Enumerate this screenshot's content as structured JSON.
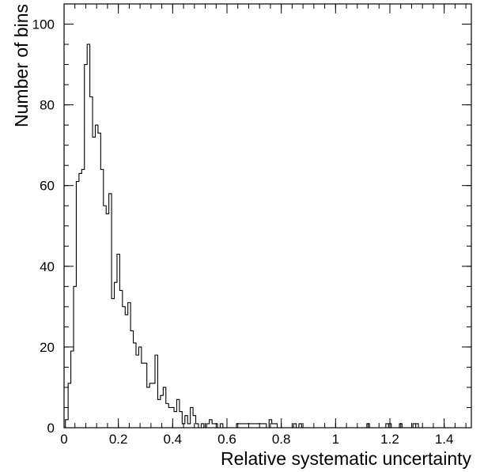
{
  "chart_data": {
    "type": "bar",
    "histogram": true,
    "title": "",
    "xlabel": "Relative systematic uncertainty",
    "ylabel": "Number of bins",
    "xlim": [
      0,
      1.5
    ],
    "ylim": [
      0,
      105
    ],
    "xticks": [
      "0",
      "0.2",
      "0.4",
      "0.6",
      "0.8",
      "1",
      "1.2",
      "1.4"
    ],
    "yticks": [
      "0",
      "20",
      "40",
      "60",
      "80",
      "100"
    ],
    "grid": false,
    "line_color": "#000000",
    "bin_width": 0.01,
    "series": [
      {
        "x": [
          0.01,
          0.02,
          0.03,
          0.04,
          0.05,
          0.06,
          0.07,
          0.08,
          0.09,
          0.1,
          0.11,
          0.12,
          0.13,
          0.14,
          0.15,
          0.16,
          0.17,
          0.18,
          0.19,
          0.2,
          0.21,
          0.22,
          0.23,
          0.24,
          0.25,
          0.26,
          0.27,
          0.28,
          0.29,
          0.3,
          0.31,
          0.32,
          0.33,
          0.34,
          0.35,
          0.36,
          0.37,
          0.38,
          0.39,
          0.4,
          0.41,
          0.42,
          0.43,
          0.44,
          0.45,
          0.46,
          0.47,
          0.48,
          0.49,
          0.5,
          0.51,
          0.52,
          0.53,
          0.54,
          0.55,
          0.56,
          0.57,
          0.58,
          0.59,
          0.6,
          0.61,
          0.62,
          0.63,
          0.64,
          0.65,
          0.66,
          0.67,
          0.68,
          0.69,
          0.7,
          0.71,
          0.72,
          0.73,
          0.74,
          0.75,
          0.76,
          0.77,
          0.78,
          0.79,
          0.8,
          0.81,
          0.82,
          0.83,
          0.84,
          0.85,
          0.86,
          0.87,
          0.88,
          0.89,
          0.9,
          0.91,
          0.92,
          0.93,
          0.94,
          0.95,
          0.96,
          0.97,
          0.98,
          0.99,
          1.0,
          1.01,
          1.02,
          1.03,
          1.04,
          1.05,
          1.06,
          1.07,
          1.08,
          1.09,
          1.1,
          1.11,
          1.12,
          1.13,
          1.14,
          1.15,
          1.16,
          1.17,
          1.18,
          1.19,
          1.2,
          1.21,
          1.22,
          1.23,
          1.24,
          1.25,
          1.26,
          1.27,
          1.28,
          1.29,
          1.3,
          1.31,
          1.32,
          1.33,
          1.34,
          1.35,
          1.36,
          1.37,
          1.38,
          1.39,
          1.4,
          1.41,
          1.42,
          1.43,
          1.44,
          1.45,
          1.46,
          1.47,
          1.48,
          1.49
        ],
        "values": [
          2,
          11,
          19,
          35,
          61,
          63,
          64,
          90,
          95,
          82,
          72,
          75,
          73,
          64,
          55,
          53,
          58,
          32,
          36,
          43,
          34,
          30,
          28,
          31,
          24,
          21,
          18,
          20,
          16,
          16,
          10,
          11,
          11,
          18,
          7,
          8,
          10,
          6,
          5,
          5,
          4,
          7,
          4,
          1,
          3,
          1,
          5,
          3,
          1,
          0,
          1,
          0,
          1,
          2,
          1,
          1,
          0,
          1,
          0,
          0,
          0,
          0,
          0,
          1,
          1,
          1,
          1,
          1,
          1,
          1,
          1,
          1,
          1,
          1,
          0,
          2,
          1,
          1,
          0,
          0,
          0,
          0,
          0,
          0,
          1,
          0,
          1,
          0,
          0,
          0,
          0,
          0,
          0,
          0,
          0,
          0,
          0,
          0,
          0,
          0,
          0,
          0,
          0,
          0,
          0,
          0,
          0,
          0,
          0,
          0,
          0,
          0,
          0,
          0,
          0,
          0,
          0,
          0,
          0,
          0,
          0,
          0,
          0,
          0,
          0,
          0,
          0,
          0,
          0,
          0,
          0,
          0,
          0,
          0,
          0,
          0,
          0,
          0,
          0,
          0,
          0,
          0,
          0,
          0,
          0,
          0,
          0,
          0,
          0
        ]
      }
    ],
    "extra_bins": [
      [
        1.12,
        1
      ],
      [
        1.19,
        1
      ],
      [
        1.2,
        1
      ],
      [
        1.24,
        1
      ],
      [
        1.29,
        1
      ],
      [
        1.3,
        1
      ]
    ]
  }
}
